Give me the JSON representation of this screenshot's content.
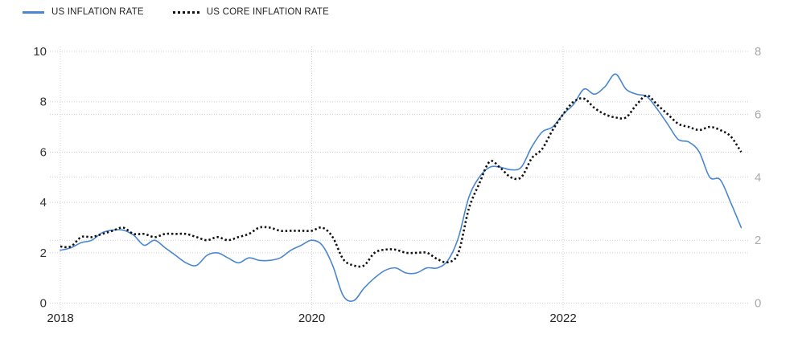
{
  "legend": [
    {
      "label": "US INFLATION RATE",
      "color": "#4a87d0",
      "style": "solid"
    },
    {
      "label": "US CORE INFLATION RATE",
      "color": "#111111",
      "style": "dotted"
    }
  ],
  "colors": {
    "line_blue": "#4a87d0",
    "line_black": "#111111",
    "gridline": "#cfcfcf",
    "left_axis_label": "#333333",
    "right_axis_label": "#aaaaaa",
    "x_axis_label": "#222222",
    "background": "#ffffff"
  },
  "chart_data": {
    "type": "line",
    "title": "",
    "frequency": "monthly",
    "x_start": "2018-01",
    "x_end": "2023-06",
    "x_tick_labels": [
      "2018",
      "2020",
      "2022"
    ],
    "grid": true,
    "legend_position": "top-left",
    "left_axis": {
      "label": "",
      "range": [
        0,
        10
      ],
      "ticks": [
        0,
        2,
        4,
        6,
        8,
        10
      ]
    },
    "right_axis": {
      "label": "",
      "range": [
        0,
        8
      ],
      "ticks": [
        0,
        2,
        4,
        6,
        8
      ]
    },
    "series": [
      {
        "name": "US INFLATION RATE",
        "axis": "left",
        "color": "#4a87d0",
        "line_style": "solid",
        "values": [
          2.1,
          2.2,
          2.4,
          2.5,
          2.8,
          2.9,
          2.9,
          2.7,
          2.3,
          2.5,
          2.2,
          1.9,
          1.6,
          1.5,
          1.9,
          2.0,
          1.8,
          1.6,
          1.8,
          1.7,
          1.7,
          1.8,
          2.1,
          2.3,
          2.5,
          2.3,
          1.5,
          0.3,
          0.1,
          0.6,
          1.0,
          1.3,
          1.4,
          1.2,
          1.2,
          1.4,
          1.4,
          1.7,
          2.6,
          4.2,
          5.0,
          5.4,
          5.4,
          5.3,
          5.4,
          6.2,
          6.8,
          7.0,
          7.5,
          7.9,
          8.5,
          8.3,
          8.6,
          9.1,
          8.5,
          8.3,
          8.2,
          7.7,
          7.1,
          6.5,
          6.4,
          6.0,
          5.0,
          4.9,
          4.0,
          3.0
        ]
      },
      {
        "name": "US CORE INFLATION RATE",
        "axis": "right",
        "color": "#111111",
        "line_style": "dotted",
        "values": [
          1.8,
          1.8,
          2.1,
          2.1,
          2.2,
          2.3,
          2.4,
          2.2,
          2.2,
          2.1,
          2.2,
          2.2,
          2.2,
          2.1,
          2.0,
          2.1,
          2.0,
          2.1,
          2.2,
          2.4,
          2.4,
          2.3,
          2.3,
          2.3,
          2.3,
          2.4,
          2.1,
          1.4,
          1.2,
          1.2,
          1.6,
          1.7,
          1.7,
          1.6,
          1.6,
          1.6,
          1.4,
          1.3,
          1.6,
          3.0,
          3.8,
          4.5,
          4.3,
          4.0,
          4.0,
          4.6,
          4.9,
          5.5,
          6.0,
          6.4,
          6.5,
          6.2,
          6.0,
          5.9,
          5.9,
          6.3,
          6.6,
          6.3,
          6.0,
          5.7,
          5.6,
          5.5,
          5.6,
          5.5,
          5.3,
          4.8
        ]
      }
    ]
  }
}
